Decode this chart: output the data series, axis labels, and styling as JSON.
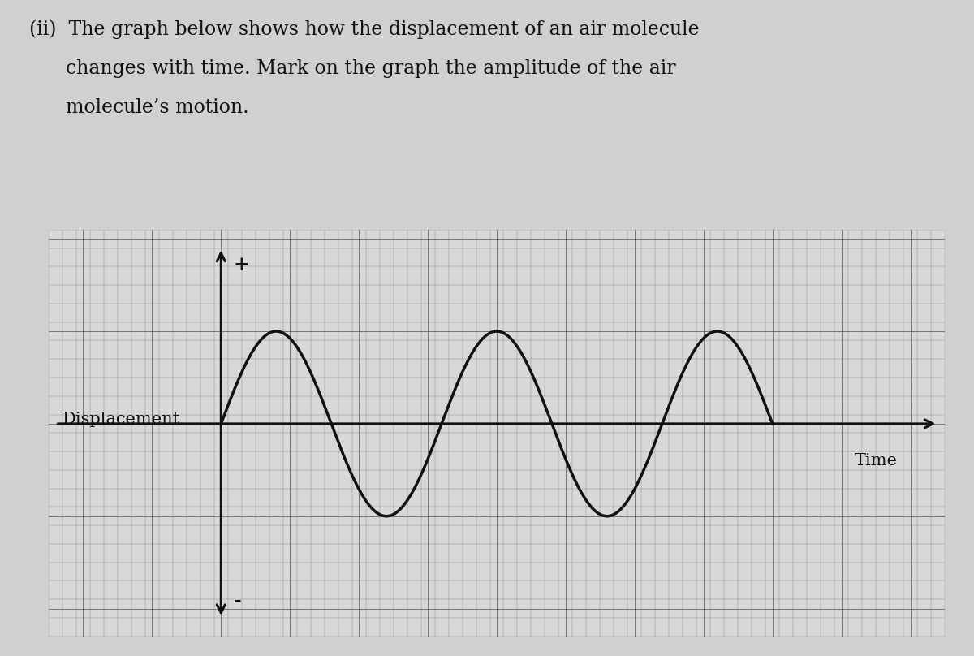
{
  "title_line1": "(ii)  The graph below shows how the displacement of an air molecule",
  "title_line2": "      changes with time. Mark on the graph the amplitude of the air",
  "title_line3": "      molecule’s motion.",
  "xlabel": "Time",
  "ylabel": "Displacement",
  "bg_color": "#d8d8d8",
  "outer_bg": "#c8c8c8",
  "grid_color": "#555555",
  "wave_color": "#111111",
  "axis_color": "#111111",
  "wave_amplitude": 1.0,
  "wave_period": 3.2,
  "wave_x_start": 0.0,
  "wave_x_end": 8.0,
  "x_axis_start": -2.5,
  "x_axis_end": 10.5,
  "y_axis_bottom": -2.3,
  "y_axis_top": 2.1,
  "plus_label": "+",
  "minus_label": "-",
  "fig_width": 12.0,
  "fig_height": 8.08,
  "text_fontsize": 17,
  "label_fontsize": 15
}
